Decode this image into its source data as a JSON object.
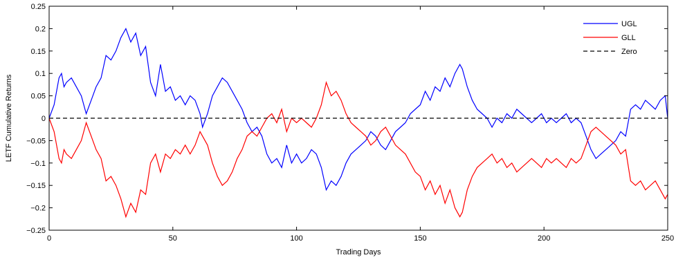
{
  "chart_data": {
    "type": "line",
    "title": "",
    "xlabel": "Trading Days",
    "ylabel": "LETF Cumulative Returns",
    "xlim": [
      0,
      250
    ],
    "ylim": [
      -0.25,
      0.25
    ],
    "x_ticks": [
      0,
      50,
      100,
      150,
      200,
      250
    ],
    "x_tick_labels": [
      "0",
      "50",
      "100",
      "150",
      "200",
      "250"
    ],
    "y_ticks": [
      -0.25,
      -0.2,
      -0.15,
      -0.1,
      -0.05,
      0,
      0.05,
      0.1,
      0.15,
      0.2,
      0.25
    ],
    "y_tick_labels": [
      "−0.25",
      "−0.2",
      "−0.15",
      "−0.1",
      "−0.05",
      "0",
      "0.05",
      "0.1",
      "0.15",
      "0.2",
      "0.25"
    ],
    "grid": false,
    "legend_position": "top-right",
    "series": [
      {
        "name": "UGL",
        "color": "#0000ff",
        "style": "solid",
        "x": [
          0,
          2,
          4,
          5,
          6,
          7,
          9,
          11,
          13,
          15,
          17,
          19,
          21,
          23,
          25,
          27,
          29,
          31,
          33,
          35,
          37,
          39,
          41,
          43,
          45,
          47,
          49,
          51,
          53,
          55,
          57,
          59,
          61,
          62,
          64,
          66,
          68,
          70,
          72,
          74,
          76,
          78,
          80,
          82,
          84,
          86,
          88,
          90,
          92,
          94,
          96,
          98,
          100,
          102,
          104,
          106,
          108,
          110,
          112,
          114,
          116,
          118,
          120,
          122,
          124,
          126,
          128,
          130,
          132,
          134,
          136,
          138,
          140,
          142,
          144,
          146,
          148,
          150,
          152,
          154,
          156,
          158,
          160,
          162,
          164,
          166,
          167,
          169,
          171,
          173,
          175,
          177,
          179,
          181,
          183,
          185,
          187,
          189,
          191,
          193,
          195,
          197,
          199,
          201,
          203,
          205,
          207,
          209,
          211,
          213,
          215,
          217,
          219,
          221,
          223,
          225,
          227,
          229,
          231,
          233,
          235,
          237,
          239,
          241,
          243,
          245,
          247,
          249,
          250
        ],
        "y": [
          0,
          0.03,
          0.09,
          0.1,
          0.07,
          0.08,
          0.09,
          0.07,
          0.05,
          0.01,
          0.04,
          0.07,
          0.09,
          0.14,
          0.13,
          0.15,
          0.18,
          0.2,
          0.17,
          0.19,
          0.14,
          0.16,
          0.08,
          0.05,
          0.12,
          0.06,
          0.07,
          0.04,
          0.05,
          0.03,
          0.05,
          0.04,
          0.01,
          -0.02,
          0.01,
          0.05,
          0.07,
          0.09,
          0.08,
          0.06,
          0.04,
          0.02,
          -0.01,
          -0.03,
          -0.02,
          -0.04,
          -0.08,
          -0.1,
          -0.09,
          -0.11,
          -0.06,
          -0.1,
          -0.08,
          -0.1,
          -0.09,
          -0.07,
          -0.08,
          -0.11,
          -0.16,
          -0.14,
          -0.15,
          -0.13,
          -0.1,
          -0.08,
          -0.07,
          -0.06,
          -0.05,
          -0.03,
          -0.04,
          -0.06,
          -0.07,
          -0.05,
          -0.03,
          -0.02,
          -0.01,
          0.01,
          0.02,
          0.03,
          0.06,
          0.04,
          0.07,
          0.06,
          0.09,
          0.07,
          0.1,
          0.12,
          0.11,
          0.07,
          0.04,
          0.02,
          0.01,
          0.0,
          -0.02,
          0.0,
          -0.01,
          0.01,
          0.0,
          0.02,
          0.01,
          0.0,
          -0.01,
          0.0,
          0.01,
          -0.01,
          0.0,
          -0.01,
          0.0,
          0.01,
          -0.01,
          0.0,
          -0.01,
          -0.04,
          -0.07,
          -0.09,
          -0.08,
          -0.07,
          -0.06,
          -0.05,
          -0.03,
          -0.04,
          0.02,
          0.03,
          0.02,
          0.04,
          0.03,
          0.02,
          0.04,
          0.05,
          0.0
        ]
      },
      {
        "name": "GLL",
        "color": "#ff0000",
        "style": "solid",
        "x": [
          0,
          2,
          4,
          5,
          6,
          7,
          9,
          11,
          13,
          15,
          17,
          19,
          21,
          23,
          25,
          27,
          29,
          31,
          33,
          35,
          37,
          39,
          41,
          43,
          45,
          47,
          49,
          51,
          53,
          55,
          57,
          59,
          61,
          62,
          64,
          66,
          68,
          70,
          72,
          74,
          76,
          78,
          80,
          82,
          84,
          86,
          88,
          90,
          92,
          94,
          96,
          98,
          100,
          102,
          104,
          106,
          108,
          110,
          112,
          114,
          116,
          118,
          120,
          122,
          124,
          126,
          128,
          130,
          132,
          134,
          136,
          138,
          140,
          142,
          144,
          146,
          148,
          150,
          152,
          154,
          156,
          158,
          160,
          162,
          164,
          166,
          167,
          169,
          171,
          173,
          175,
          177,
          179,
          181,
          183,
          185,
          187,
          189,
          191,
          193,
          195,
          197,
          199,
          201,
          203,
          205,
          207,
          209,
          211,
          213,
          215,
          217,
          219,
          221,
          223,
          225,
          227,
          229,
          231,
          233,
          235,
          237,
          239,
          241,
          243,
          245,
          247,
          249,
          250
        ],
        "y": [
          0,
          -0.03,
          -0.09,
          -0.1,
          -0.07,
          -0.08,
          -0.09,
          -0.07,
          -0.05,
          -0.01,
          -0.04,
          -0.07,
          -0.09,
          -0.14,
          -0.13,
          -0.15,
          -0.18,
          -0.22,
          -0.19,
          -0.21,
          -0.16,
          -0.17,
          -0.1,
          -0.08,
          -0.12,
          -0.08,
          -0.09,
          -0.07,
          -0.08,
          -0.06,
          -0.08,
          -0.06,
          -0.03,
          -0.04,
          -0.06,
          -0.1,
          -0.13,
          -0.15,
          -0.14,
          -0.12,
          -0.09,
          -0.07,
          -0.04,
          -0.03,
          -0.04,
          -0.02,
          0.0,
          0.01,
          -0.01,
          0.02,
          -0.03,
          0.0,
          -0.01,
          0.0,
          -0.01,
          -0.02,
          0.0,
          0.03,
          0.08,
          0.05,
          0.06,
          0.04,
          0.01,
          -0.01,
          -0.02,
          -0.03,
          -0.04,
          -0.06,
          -0.05,
          -0.03,
          -0.02,
          -0.04,
          -0.06,
          -0.07,
          -0.08,
          -0.1,
          -0.12,
          -0.13,
          -0.16,
          -0.14,
          -0.17,
          -0.15,
          -0.19,
          -0.16,
          -0.2,
          -0.22,
          -0.21,
          -0.16,
          -0.13,
          -0.11,
          -0.1,
          -0.09,
          -0.08,
          -0.1,
          -0.09,
          -0.11,
          -0.1,
          -0.12,
          -0.11,
          -0.1,
          -0.09,
          -0.1,
          -0.11,
          -0.09,
          -0.1,
          -0.09,
          -0.1,
          -0.11,
          -0.09,
          -0.1,
          -0.09,
          -0.06,
          -0.03,
          -0.02,
          -0.03,
          -0.04,
          -0.05,
          -0.06,
          -0.08,
          -0.07,
          -0.14,
          -0.15,
          -0.14,
          -0.16,
          -0.15,
          -0.14,
          -0.16,
          -0.18,
          -0.17
        ]
      },
      {
        "name": "Zero",
        "color": "#000000",
        "style": "dashed",
        "x": [
          0,
          250
        ],
        "y": [
          0,
          0
        ]
      }
    ]
  }
}
